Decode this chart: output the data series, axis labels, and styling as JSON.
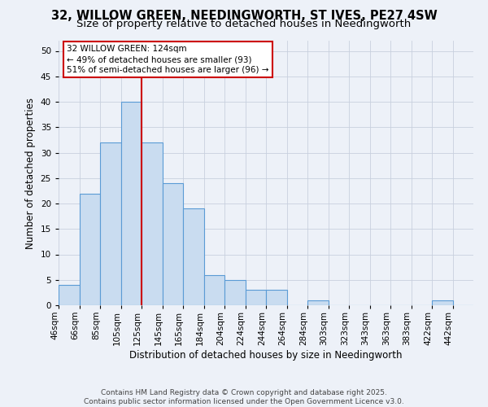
{
  "title": "32, WILLOW GREEN, NEEDINGWORTH, ST IVES, PE27 4SW",
  "subtitle": "Size of property relative to detached houses in Needingworth",
  "xlabel": "Distribution of detached houses by size in Needingworth",
  "ylabel": "Number of detached properties",
  "bin_labels": [
    "46sqm",
    "66sqm",
    "85sqm",
    "105sqm",
    "125sqm",
    "145sqm",
    "165sqm",
    "184sqm",
    "204sqm",
    "224sqm",
    "244sqm",
    "264sqm",
    "284sqm",
    "303sqm",
    "323sqm",
    "343sqm",
    "363sqm",
    "383sqm",
    "422sqm",
    "442sqm"
  ],
  "bar_values": [
    4,
    22,
    32,
    40,
    32,
    24,
    19,
    6,
    5,
    3,
    3,
    0,
    1,
    0,
    0,
    0,
    0,
    0,
    1,
    0
  ],
  "n_bars": 20,
  "vline_bar_index": 4,
  "bar_color": "#c9dcf0",
  "bar_edge_color": "#5b9bd5",
  "bar_edge_width": 0.8,
  "grid_color": "#c8d0de",
  "background_color": "#edf1f8",
  "vline_color": "#cc0000",
  "annotation_text": "32 WILLOW GREEN: 124sqm\n← 49% of detached houses are smaller (93)\n51% of semi-detached houses are larger (96) →",
  "annotation_box_color": "#ffffff",
  "annotation_box_edge": "#cc0000",
  "ylim": [
    0,
    52
  ],
  "yticks": [
    0,
    5,
    10,
    15,
    20,
    25,
    30,
    35,
    40,
    45,
    50
  ],
  "footer_line1": "Contains HM Land Registry data © Crown copyright and database right 2025.",
  "footer_line2": "Contains public sector information licensed under the Open Government Licence v3.0.",
  "title_fontsize": 10.5,
  "subtitle_fontsize": 9.5,
  "axis_label_fontsize": 8.5,
  "tick_fontsize": 7.5,
  "annotation_fontsize": 7.5,
  "footer_fontsize": 6.5
}
